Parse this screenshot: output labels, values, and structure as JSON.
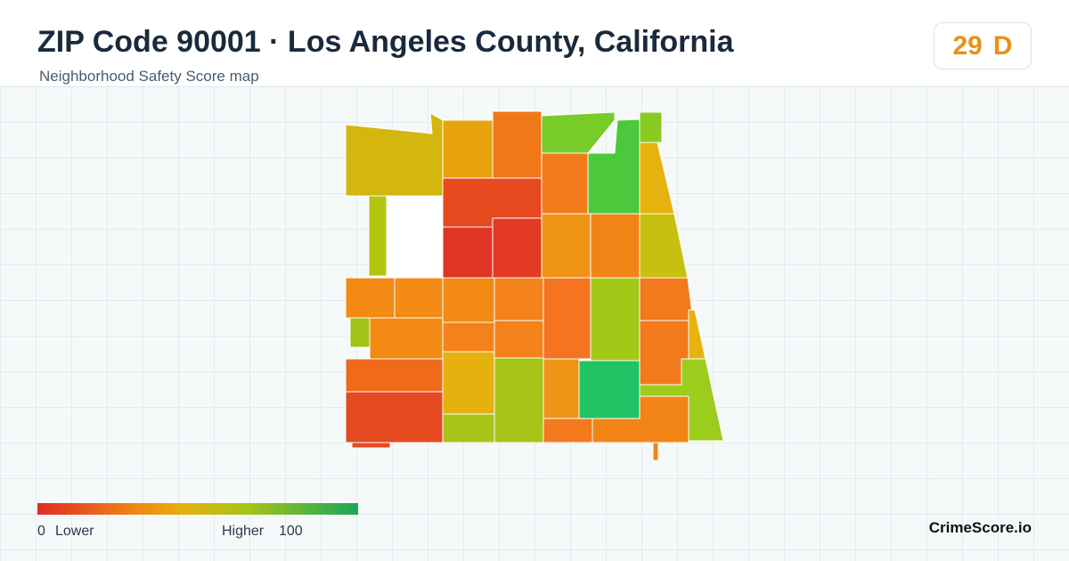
{
  "header": {
    "title": "ZIP Code 90001 · Los Angeles County, California",
    "subtitle": "Neighborhood Safety Score map"
  },
  "score": {
    "value": 29,
    "grade": "D"
  },
  "legend": {
    "min": 0,
    "min_label": "Lower",
    "max_label": "Higher",
    "max": 100
  },
  "brand": "CrimeScore.io"
}
